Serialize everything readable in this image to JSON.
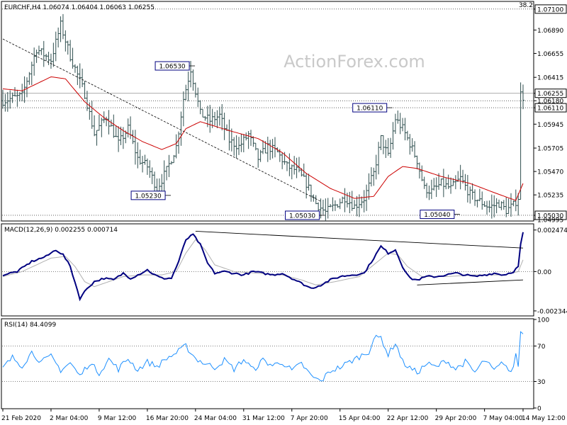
{
  "header": {
    "top_right_value": "38.2"
  },
  "watermark": "ActionForex.com",
  "colors": {
    "bars": "#2f4f4f",
    "moving_average": "#cc0000",
    "macd_main": "#000080",
    "macd_signal": "#b0b0b0",
    "rsi": "#1e90ff",
    "trendline": "#000000",
    "grid_dotted": "#000000",
    "current_price_box": "#000000"
  },
  "chart_data": [
    {
      "type": "ohlc",
      "panel": "price",
      "title": "EURCHF,H4  1.06074 1.06404 1.06063 1.06255",
      "ylim": [
        1.0498,
        1.0717
      ],
      "y_tick_labels": [
        "1.07100",
        "1.06890",
        "1.06655",
        "1.06415",
        "1.06255",
        "1.06180",
        "1.06110",
        "1.05945",
        "1.05705",
        "1.05470",
        "1.05235",
        "1.05030",
        "1.04995"
      ],
      "current_price": "1.06255",
      "horizontal_lines": [
        1.071,
        1.0618,
        1.0611,
        1.0503
      ],
      "annotations": [
        {
          "text": "1.06530",
          "date": "22 Mar 2020 20:00",
          "value": 1.0653
        },
        {
          "text": "1.05230",
          "date": "19 Mar 2020 16:00",
          "value": 1.0523
        },
        {
          "text": "1.06110",
          "date": "25 Apr 2020 12:00",
          "value": 1.0611
        },
        {
          "text": "1.05030",
          "date": "16 Apr 2020 16:00",
          "value": 1.0503
        },
        {
          "text": "1.05040",
          "date": "10 May 2020 00:00",
          "value": 1.0504
        }
      ],
      "x_tick_labels": [
        "21 Feb 2020",
        "2 Mar 04:00",
        "9 Mar 12:00",
        "16 Mar 20:00",
        "24 Mar 04:00",
        "31 Mar 12:00",
        "7 Apr 20:00",
        "15 Apr 04:00",
        "22 Apr 12:00",
        "29 Apr 20:00",
        "7 May 04:00",
        "14 May 12:00"
      ],
      "anchors": [
        [
          0,
          1.0618
        ],
        [
          8,
          1.0623
        ],
        [
          14,
          1.067
        ],
        [
          20,
          1.0659
        ],
        [
          24,
          1.0694
        ],
        [
          28,
          1.0663
        ],
        [
          34,
          1.0625
        ],
        [
          38,
          1.0585
        ],
        [
          43,
          1.0602
        ],
        [
          48,
          1.0575
        ],
        [
          52,
          1.059
        ],
        [
          56,
          1.056
        ],
        [
          60,
          1.0552
        ],
        [
          64,
          1.053
        ],
        [
          68,
          1.0548
        ],
        [
          72,
          1.0572
        ],
        [
          75,
          1.062
        ],
        [
          78,
          1.065
        ],
        [
          82,
          1.0605
        ],
        [
          86,
          1.0598
        ],
        [
          90,
          1.0603
        ],
        [
          94,
          1.0578
        ],
        [
          98,
          1.0572
        ],
        [
          102,
          1.0584
        ],
        [
          106,
          1.056
        ],
        [
          110,
          1.0572
        ],
        [
          114,
          1.0566
        ],
        [
          118,
          1.0552
        ],
        [
          122,
          1.0548
        ],
        [
          126,
          1.0535
        ],
        [
          130,
          1.0515
        ],
        [
          134,
          1.0506
        ],
        [
          138,
          1.0513
        ],
        [
          142,
          1.0521
        ],
        [
          146,
          1.0512
        ],
        [
          150,
          1.052
        ],
        [
          154,
          1.0545
        ],
        [
          157,
          1.058
        ],
        [
          160,
          1.0562
        ],
        [
          163,
          1.06
        ],
        [
          166,
          1.059
        ],
        [
          169,
          1.0575
        ],
        [
          172,
          1.0558
        ],
        [
          175,
          1.053
        ],
        [
          178,
          1.0527
        ],
        [
          182,
          1.0535
        ],
        [
          186,
          1.053
        ],
        [
          190,
          1.054
        ],
        [
          194,
          1.0524
        ],
        [
          198,
          1.0517
        ],
        [
          202,
          1.0511
        ],
        [
          206,
          1.0515
        ],
        [
          209,
          1.0508
        ],
        [
          212,
          1.0513
        ],
        [
          214,
          1.0521
        ],
        [
          215,
          1.0625
        ],
        [
          216,
          1.0622
        ]
      ],
      "moving_average_anchors": [
        [
          0,
          1.063
        ],
        [
          8,
          1.0628
        ],
        [
          20,
          1.0642
        ],
        [
          26,
          1.064
        ],
        [
          34,
          1.0617
        ],
        [
          42,
          1.0601
        ],
        [
          50,
          1.0588
        ],
        [
          58,
          1.0577
        ],
        [
          66,
          1.0569
        ],
        [
          72,
          1.0575
        ],
        [
          76,
          1.059
        ],
        [
          82,
          1.0597
        ],
        [
          94,
          1.0588
        ],
        [
          106,
          1.058
        ],
        [
          116,
          1.0566
        ],
        [
          126,
          1.0545
        ],
        [
          136,
          1.053
        ],
        [
          146,
          1.052
        ],
        [
          154,
          1.0522
        ],
        [
          160,
          1.0542
        ],
        [
          166,
          1.0552
        ],
        [
          172,
          1.055
        ],
        [
          182,
          1.0542
        ],
        [
          194,
          1.0535
        ],
        [
          206,
          1.0524
        ],
        [
          213,
          1.0518
        ],
        [
          216,
          1.0535
        ]
      ],
      "trendline": {
        "from": [
          0,
          1.068
        ],
        "to": [
          132,
          1.0517
        ]
      }
    },
    {
      "type": "line",
      "panel": "macd",
      "title": "MACD(12,26,9) 0.002255 0.000714",
      "ylim": [
        -0.0026,
        0.0028
      ],
      "y_tick_labels": [
        "0.002474",
        "0.00",
        "-0.002344"
      ],
      "zero_line": 0,
      "main_anchors": [
        [
          0,
          -0.0002
        ],
        [
          6,
          0.0
        ],
        [
          12,
          0.0006
        ],
        [
          18,
          0.0009
        ],
        [
          22,
          0.0013
        ],
        [
          25,
          0.001
        ],
        [
          28,
          0.0003
        ],
        [
          32,
          -0.0016
        ],
        [
          35,
          -0.001
        ],
        [
          38,
          -0.0006
        ],
        [
          42,
          -0.0004
        ],
        [
          46,
          -0.0005
        ],
        [
          50,
          -0.0001
        ],
        [
          53,
          -0.0004
        ],
        [
          56,
          -0.0002
        ],
        [
          60,
          0.0001
        ],
        [
          63,
          -0.0002
        ],
        [
          66,
          -0.0004
        ],
        [
          70,
          -0.0004
        ],
        [
          73,
          0.0006
        ],
        [
          76,
          0.0019
        ],
        [
          79,
          0.0022
        ],
        [
          82,
          0.0016
        ],
        [
          85,
          0.0005
        ],
        [
          88,
          -0.0001
        ],
        [
          92,
          0.0
        ],
        [
          96,
          -0.0001
        ],
        [
          100,
          -0.0002
        ],
        [
          104,
          0.0
        ],
        [
          108,
          -0.0001
        ],
        [
          112,
          -0.0002
        ],
        [
          116,
          -0.0001
        ],
        [
          120,
          -0.0004
        ],
        [
          124,
          -0.0007
        ],
        [
          128,
          -0.001
        ],
        [
          132,
          -0.0008
        ],
        [
          136,
          -0.0005
        ],
        [
          140,
          -0.0003
        ],
        [
          145,
          -0.0002
        ],
        [
          150,
          -0.0001
        ],
        [
          154,
          0.0008
        ],
        [
          157,
          0.0015
        ],
        [
          160,
          0.0011
        ],
        [
          163,
          0.0013
        ],
        [
          166,
          0.0003
        ],
        [
          169,
          -0.0004
        ],
        [
          172,
          -0.0005
        ],
        [
          176,
          -0.0003
        ],
        [
          180,
          -0.0003
        ],
        [
          184,
          -0.0002
        ],
        [
          188,
          -0.0001
        ],
        [
          192,
          -0.0002
        ],
        [
          196,
          -0.0003
        ],
        [
          200,
          -0.0002
        ],
        [
          204,
          -0.0001
        ],
        [
          208,
          -0.0002
        ],
        [
          212,
          0.0
        ],
        [
          214,
          0.0003
        ],
        [
          215,
          0.0016
        ],
        [
          216,
          0.0023
        ]
      ],
      "signal_anchors": [
        [
          0,
          -0.0003
        ],
        [
          8,
          0.0
        ],
        [
          14,
          0.0004
        ],
        [
          20,
          0.0008
        ],
        [
          26,
          0.0009
        ],
        [
          30,
          0.0003
        ],
        [
          34,
          -0.0006
        ],
        [
          38,
          -0.0009
        ],
        [
          44,
          -0.0006
        ],
        [
          50,
          -0.0003
        ],
        [
          58,
          -0.0002
        ],
        [
          66,
          -0.0002
        ],
        [
          72,
          0.0
        ],
        [
          76,
          0.0011
        ],
        [
          80,
          0.0019
        ],
        [
          84,
          0.0013
        ],
        [
          88,
          0.0004
        ],
        [
          96,
          0.0
        ],
        [
          106,
          -0.0001
        ],
        [
          116,
          -0.0002
        ],
        [
          124,
          -0.0005
        ],
        [
          130,
          -0.0008
        ],
        [
          138,
          -0.0006
        ],
        [
          148,
          -0.0003
        ],
        [
          154,
          0.0004
        ],
        [
          160,
          0.0011
        ],
        [
          164,
          0.001
        ],
        [
          168,
          0.0003
        ],
        [
          174,
          -0.0003
        ],
        [
          184,
          -0.0003
        ],
        [
          196,
          -0.0002
        ],
        [
          208,
          -0.0002
        ],
        [
          214,
          0.0
        ],
        [
          216,
          0.0007
        ]
      ],
      "trendlines": [
        {
          "from": [
            80,
            0.0024
          ],
          "to": [
            216,
            0.0014
          ]
        },
        {
          "from": [
            172,
            -0.0008
          ],
          "to": [
            216,
            -0.0005
          ]
        }
      ]
    },
    {
      "type": "line",
      "panel": "rsi",
      "title": "RSI(14) 84.4099",
      "ylim": [
        0,
        100
      ],
      "y_tick_labels": [
        "100",
        "70",
        "30",
        "0"
      ],
      "levels": [
        70,
        30
      ],
      "anchors": [
        [
          0,
          45
        ],
        [
          4,
          57
        ],
        [
          8,
          48
        ],
        [
          12,
          63
        ],
        [
          16,
          52
        ],
        [
          20,
          58
        ],
        [
          24,
          43
        ],
        [
          28,
          51
        ],
        [
          32,
          36
        ],
        [
          36,
          51
        ],
        [
          40,
          40
        ],
        [
          44,
          55
        ],
        [
          48,
          44
        ],
        [
          52,
          56
        ],
        [
          56,
          43
        ],
        [
          60,
          52
        ],
        [
          64,
          47
        ],
        [
          68,
          56
        ],
        [
          72,
          62
        ],
        [
          76,
          70
        ],
        [
          80,
          56
        ],
        [
          84,
          50
        ],
        [
          88,
          46
        ],
        [
          92,
          54
        ],
        [
          96,
          44
        ],
        [
          100,
          55
        ],
        [
          104,
          43
        ],
        [
          108,
          54
        ],
        [
          112,
          48
        ],
        [
          116,
          52
        ],
        [
          120,
          42
        ],
        [
          124,
          50
        ],
        [
          128,
          36
        ],
        [
          132,
          30
        ],
        [
          136,
          42
        ],
        [
          140,
          46
        ],
        [
          144,
          52
        ],
        [
          148,
          58
        ],
        [
          152,
          64
        ],
        [
          154,
          78
        ],
        [
          157,
          80
        ],
        [
          160,
          60
        ],
        [
          163,
          74
        ],
        [
          166,
          52
        ],
        [
          169,
          45
        ],
        [
          172,
          40
        ],
        [
          176,
          50
        ],
        [
          180,
          46
        ],
        [
          184,
          54
        ],
        [
          188,
          44
        ],
        [
          192,
          52
        ],
        [
          196,
          40
        ],
        [
          200,
          54
        ],
        [
          204,
          42
        ],
        [
          208,
          52
        ],
        [
          211,
          38
        ],
        [
          213,
          60
        ],
        [
          214,
          48
        ],
        [
          215,
          86
        ],
        [
          216,
          84
        ]
      ]
    }
  ]
}
